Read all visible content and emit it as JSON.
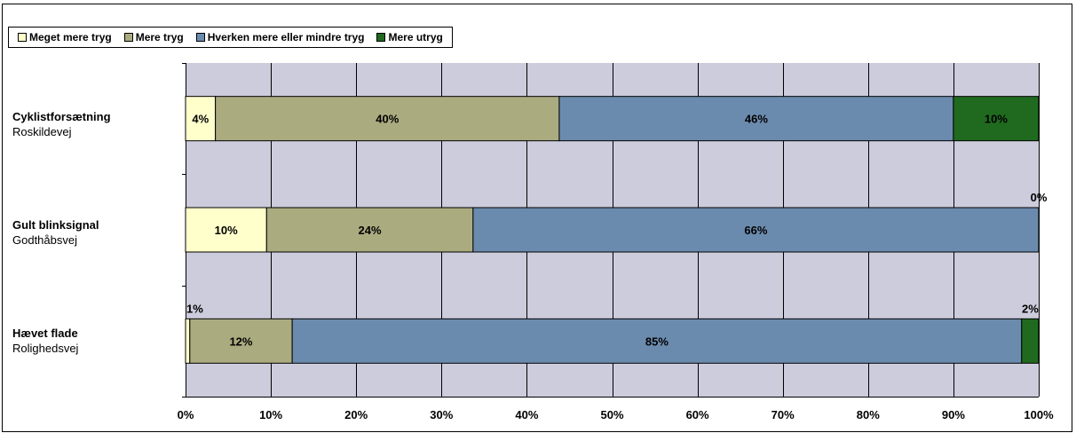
{
  "chart_data": {
    "type": "bar",
    "orientation": "horizontal",
    "stacked": true,
    "categories": [
      {
        "line1": "Cyklistforsætning",
        "line2": "Roskildevej"
      },
      {
        "line1": "Gult blinksignal",
        "line2": "Godthåbsvej"
      },
      {
        "line1": "Hævet flade",
        "line2": "Rolighedsvej"
      }
    ],
    "series": [
      {
        "name": "Meget mere tryg",
        "color": "#ffffcc",
        "values": [
          3.5,
          9.5,
          0.5
        ],
        "labels": [
          "4%",
          "10%",
          "1%"
        ]
      },
      {
        "name": "Mere tryg",
        "color": "#abab80",
        "values": [
          40.3,
          24.2,
          12.0
        ],
        "labels": [
          "40%",
          "24%",
          "12%"
        ]
      },
      {
        "name": "Hverken mere eller mindre tryg",
        "color": "#6b8bae",
        "values": [
          46.2,
          66.3,
          85.5
        ],
        "labels": [
          "46%",
          "66%",
          "85%"
        ]
      },
      {
        "name": "Mere utryg",
        "color": "#1f6a1f",
        "values": [
          10.0,
          0.0,
          2.0
        ],
        "labels": [
          "10%",
          "0%",
          "2%"
        ]
      }
    ],
    "xlim": [
      0,
      100
    ],
    "xticks": [
      "0%",
      "10%",
      "20%",
      "30%",
      "40%",
      "50%",
      "60%",
      "70%",
      "80%",
      "90%",
      "100%"
    ],
    "plot_background": "#ccccdd",
    "grid": true,
    "legend_position": "top-left"
  }
}
